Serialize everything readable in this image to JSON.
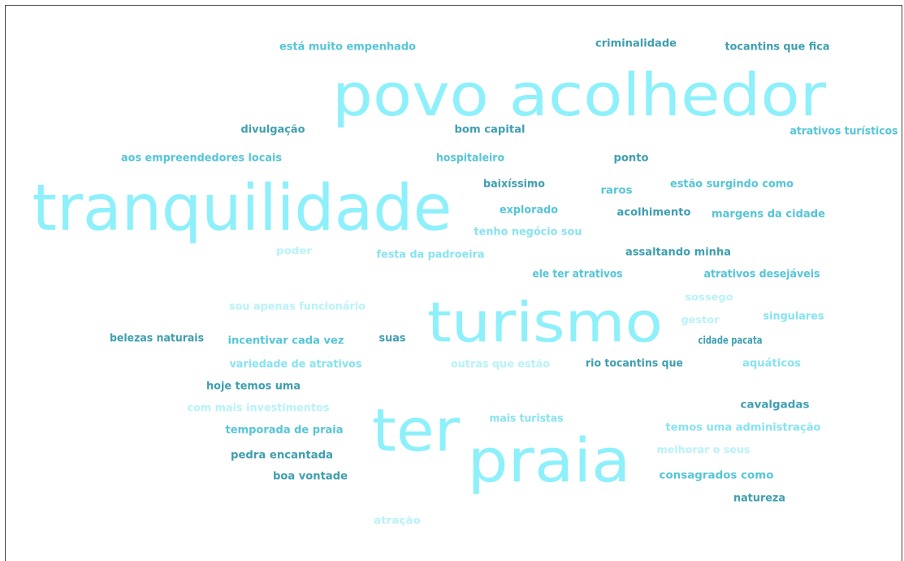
{
  "words": [
    "está muito empenhado",
    "criminalidade",
    "tocantins que fica",
    "povo acolhedor",
    "divulgação",
    "bom capital",
    "atrativos turísticos",
    "aos empreendedores locais",
    "hospitaleiro",
    "ponto",
    "tranquilidade",
    "baixíssimo",
    "raros",
    "estão surgindo como",
    "explorado",
    "acolhimento",
    "margens da cidade",
    "tenho negócio sou",
    "poder",
    "festa da padroeira",
    "assaltando minha",
    "ele ter atrativos",
    "atrativos desejáveis",
    "sossego",
    "sou apenas funcionário",
    "turismo",
    "gestor",
    "singulares",
    "belezas naturais",
    "incentivar cada vez",
    "suas",
    "cidade pacata",
    "variedade de atrativos",
    "outras que estão",
    "rio tocantins que",
    "aquáticos",
    "hoje temos uma",
    "com mais investimentos",
    "ter",
    "cavalgadas",
    "mais turistas",
    "temos uma administração",
    "temporada de praia",
    "melhorar o seus",
    "praia",
    "pedra encantada",
    "boa vontade",
    "consagrados como",
    "natureza",
    "atração"
  ]
}
